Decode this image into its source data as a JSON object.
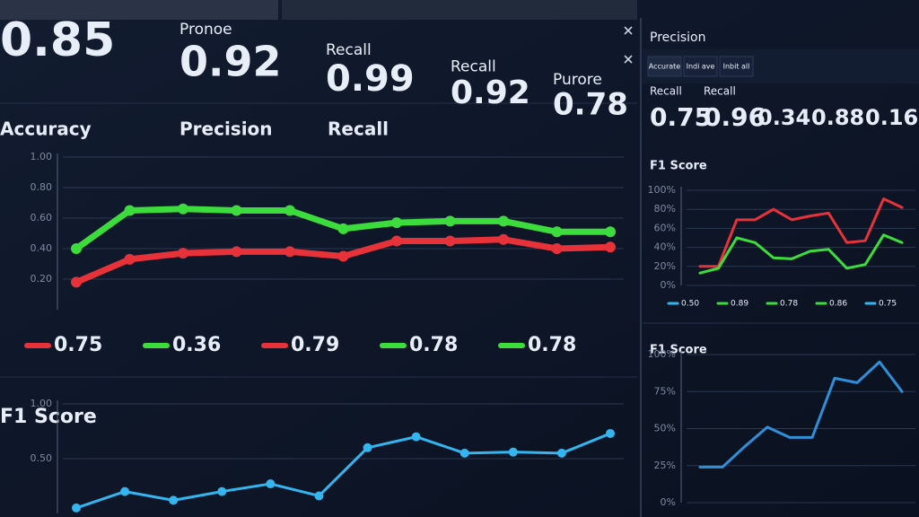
{
  "metrics": [
    {
      "label": null,
      "value": 0.85
    },
    {
      "label": "Pronoe",
      "value": 0.92
    },
    {
      "label": "Recall",
      "value": 0.99
    },
    {
      "label": "Recall",
      "value": 0.92
    },
    {
      "label": "Purore",
      "value": 0.78
    }
  ],
  "side_panel": {
    "title": "Precision",
    "tabs": [
      "Accurate",
      "Indi ave",
      "Inbit all"
    ],
    "metrics": [
      {
        "label": "Recall",
        "value": 0.75
      },
      {
        "label": "Recall",
        "value": 0.96
      },
      {
        "label": null,
        "value": 0.34
      },
      {
        "label": null,
        "value": 0.88
      },
      {
        "label": null,
        "value": 0.16
      }
    ]
  },
  "chart_data": [
    {
      "type": "line",
      "titles": [
        "Accuracy",
        "Precision",
        "Recall"
      ],
      "series": [
        {
          "color": "#3ddc3d",
          "values": [
            0.4,
            0.65,
            0.66,
            0.65,
            0.65,
            0.53,
            0.57,
            0.58,
            0.58,
            0.51,
            0.51
          ]
        },
        {
          "color": "#e8323a",
          "values": [
            0.18,
            0.33,
            0.37,
            0.38,
            0.38,
            0.35,
            0.45,
            0.45,
            0.46,
            0.4,
            0.41
          ]
        }
      ],
      "ylim": [
        0,
        1
      ],
      "yticks": [
        {
          "value": 0.2,
          "label": "0.20"
        },
        {
          "value": 0.4,
          "label": "0.40"
        },
        {
          "value": 0.6,
          "label": "0.60"
        },
        {
          "value": 0.8,
          "label": "0.80"
        },
        {
          "value": 1,
          "label": "1.00"
        }
      ],
      "grid": true,
      "annotations": [
        {
          "text": "0.75",
          "color": "#e8323a"
        },
        {
          "text": "0.36",
          "color": "#3ddc3d"
        },
        {
          "text": "0.79",
          "color": "#e8323a"
        },
        {
          "text": "0.78",
          "color": "#3ddc3d"
        },
        {
          "text": "0.78",
          "color": "#3ddc3d"
        }
      ]
    },
    {
      "type": "line",
      "title": "F1 Score",
      "series": [
        {
          "color": "#33b5f0",
          "values": [
            0.05,
            0.2,
            0.12,
            0.2,
            0.27,
            0.16,
            0.6,
            0.7,
            0.55,
            0.56,
            0.55,
            0.73
          ]
        }
      ],
      "ylim": [
        0,
        1
      ],
      "yticks": [
        {
          "value": 0.5,
          "label": "0.50"
        },
        {
          "value": 1,
          "label": "1.00"
        }
      ],
      "grid": true
    },
    {
      "type": "line",
      "title": "F1 Score",
      "series": [
        {
          "color": "#e8323a",
          "values": [
            20,
            20,
            69,
            69,
            80,
            69,
            73,
            76,
            45,
            47,
            91,
            82
          ]
        },
        {
          "color": "#3ddc3d",
          "values": [
            13,
            18,
            50,
            45,
            29,
            28,
            36,
            38,
            18,
            22,
            53,
            45
          ]
        }
      ],
      "ylim": [
        0,
        100
      ],
      "yticks": [
        {
          "value": 0,
          "label": "0%"
        },
        {
          "value": 20,
          "label": "20%"
        },
        {
          "value": 40,
          "label": "40%"
        },
        {
          "value": 60,
          "label": "60%"
        },
        {
          "value": 80,
          "label": "80%"
        },
        {
          "value": 100,
          "label": "100%"
        }
      ],
      "grid": true,
      "annotations": [
        {
          "text": "0.50",
          "color": "#33b5f0"
        },
        {
          "text": "0.89",
          "color": "#3ddc3d"
        },
        {
          "text": "0.78",
          "color": "#3ddc3d"
        },
        {
          "text": "0.86",
          "color": "#3ddc3d"
        },
        {
          "text": "0.75",
          "color": "#33b5f0"
        }
      ]
    },
    {
      "type": "line",
      "title": "F1 Score",
      "series": [
        {
          "color": "#2f8fd8",
          "values": [
            24,
            24,
            38,
            51,
            44,
            44,
            84,
            81,
            95,
            75
          ]
        }
      ],
      "ylim": [
        0,
        100
      ],
      "yticks": [
        {
          "value": 0,
          "label": "0%"
        },
        {
          "value": 25,
          "label": "25%"
        },
        {
          "value": 50,
          "label": "50%"
        },
        {
          "value": 75,
          "label": "75%"
        },
        {
          "value": 100,
          "label": "100%"
        }
      ],
      "grid": true
    }
  ]
}
